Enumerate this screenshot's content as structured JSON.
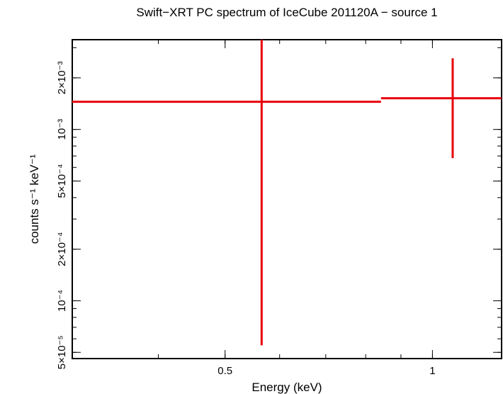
{
  "chart_data": {
    "type": "scatter",
    "title": "Swift−XRT PC spectrum of IceCube 201120A − source 1",
    "xlabel": "Energy (keV)",
    "ylabel": "counts s⁻¹ keV⁻¹",
    "xscale": "log",
    "yscale": "log",
    "xlim": [
      0.3,
      1.26
    ],
    "ylim": [
      4.6e-05,
      0.00334
    ],
    "x_tick_labels": [
      {
        "value": 0.5,
        "label": "0.5"
      },
      {
        "value": 1,
        "label": "1"
      }
    ],
    "y_tick_labels": [
      {
        "value": 5e-05,
        "label": "5×10⁻⁵"
      },
      {
        "value": 0.0001,
        "label": "10⁻⁴"
      },
      {
        "value": 0.0002,
        "label": "2×10⁻⁴"
      },
      {
        "value": 0.0005,
        "label": "5×10⁻⁴"
      },
      {
        "value": 0.001,
        "label": "10⁻³"
      },
      {
        "value": 0.002,
        "label": "2×10⁻³"
      }
    ],
    "series": [
      {
        "color": "#e8000b",
        "points": [
          {
            "x": 0.565,
            "x_low": 0.3,
            "x_high": 0.842,
            "y": 0.00145,
            "y_low": 5.5e-05,
            "y_high": 0.00334
          },
          {
            "x": 1.07,
            "x_low": 0.842,
            "x_high": 1.26,
            "y": 0.00152,
            "y_low": 0.00068,
            "y_high": 0.0026
          }
        ]
      }
    ],
    "grid": false,
    "legend": "none"
  }
}
